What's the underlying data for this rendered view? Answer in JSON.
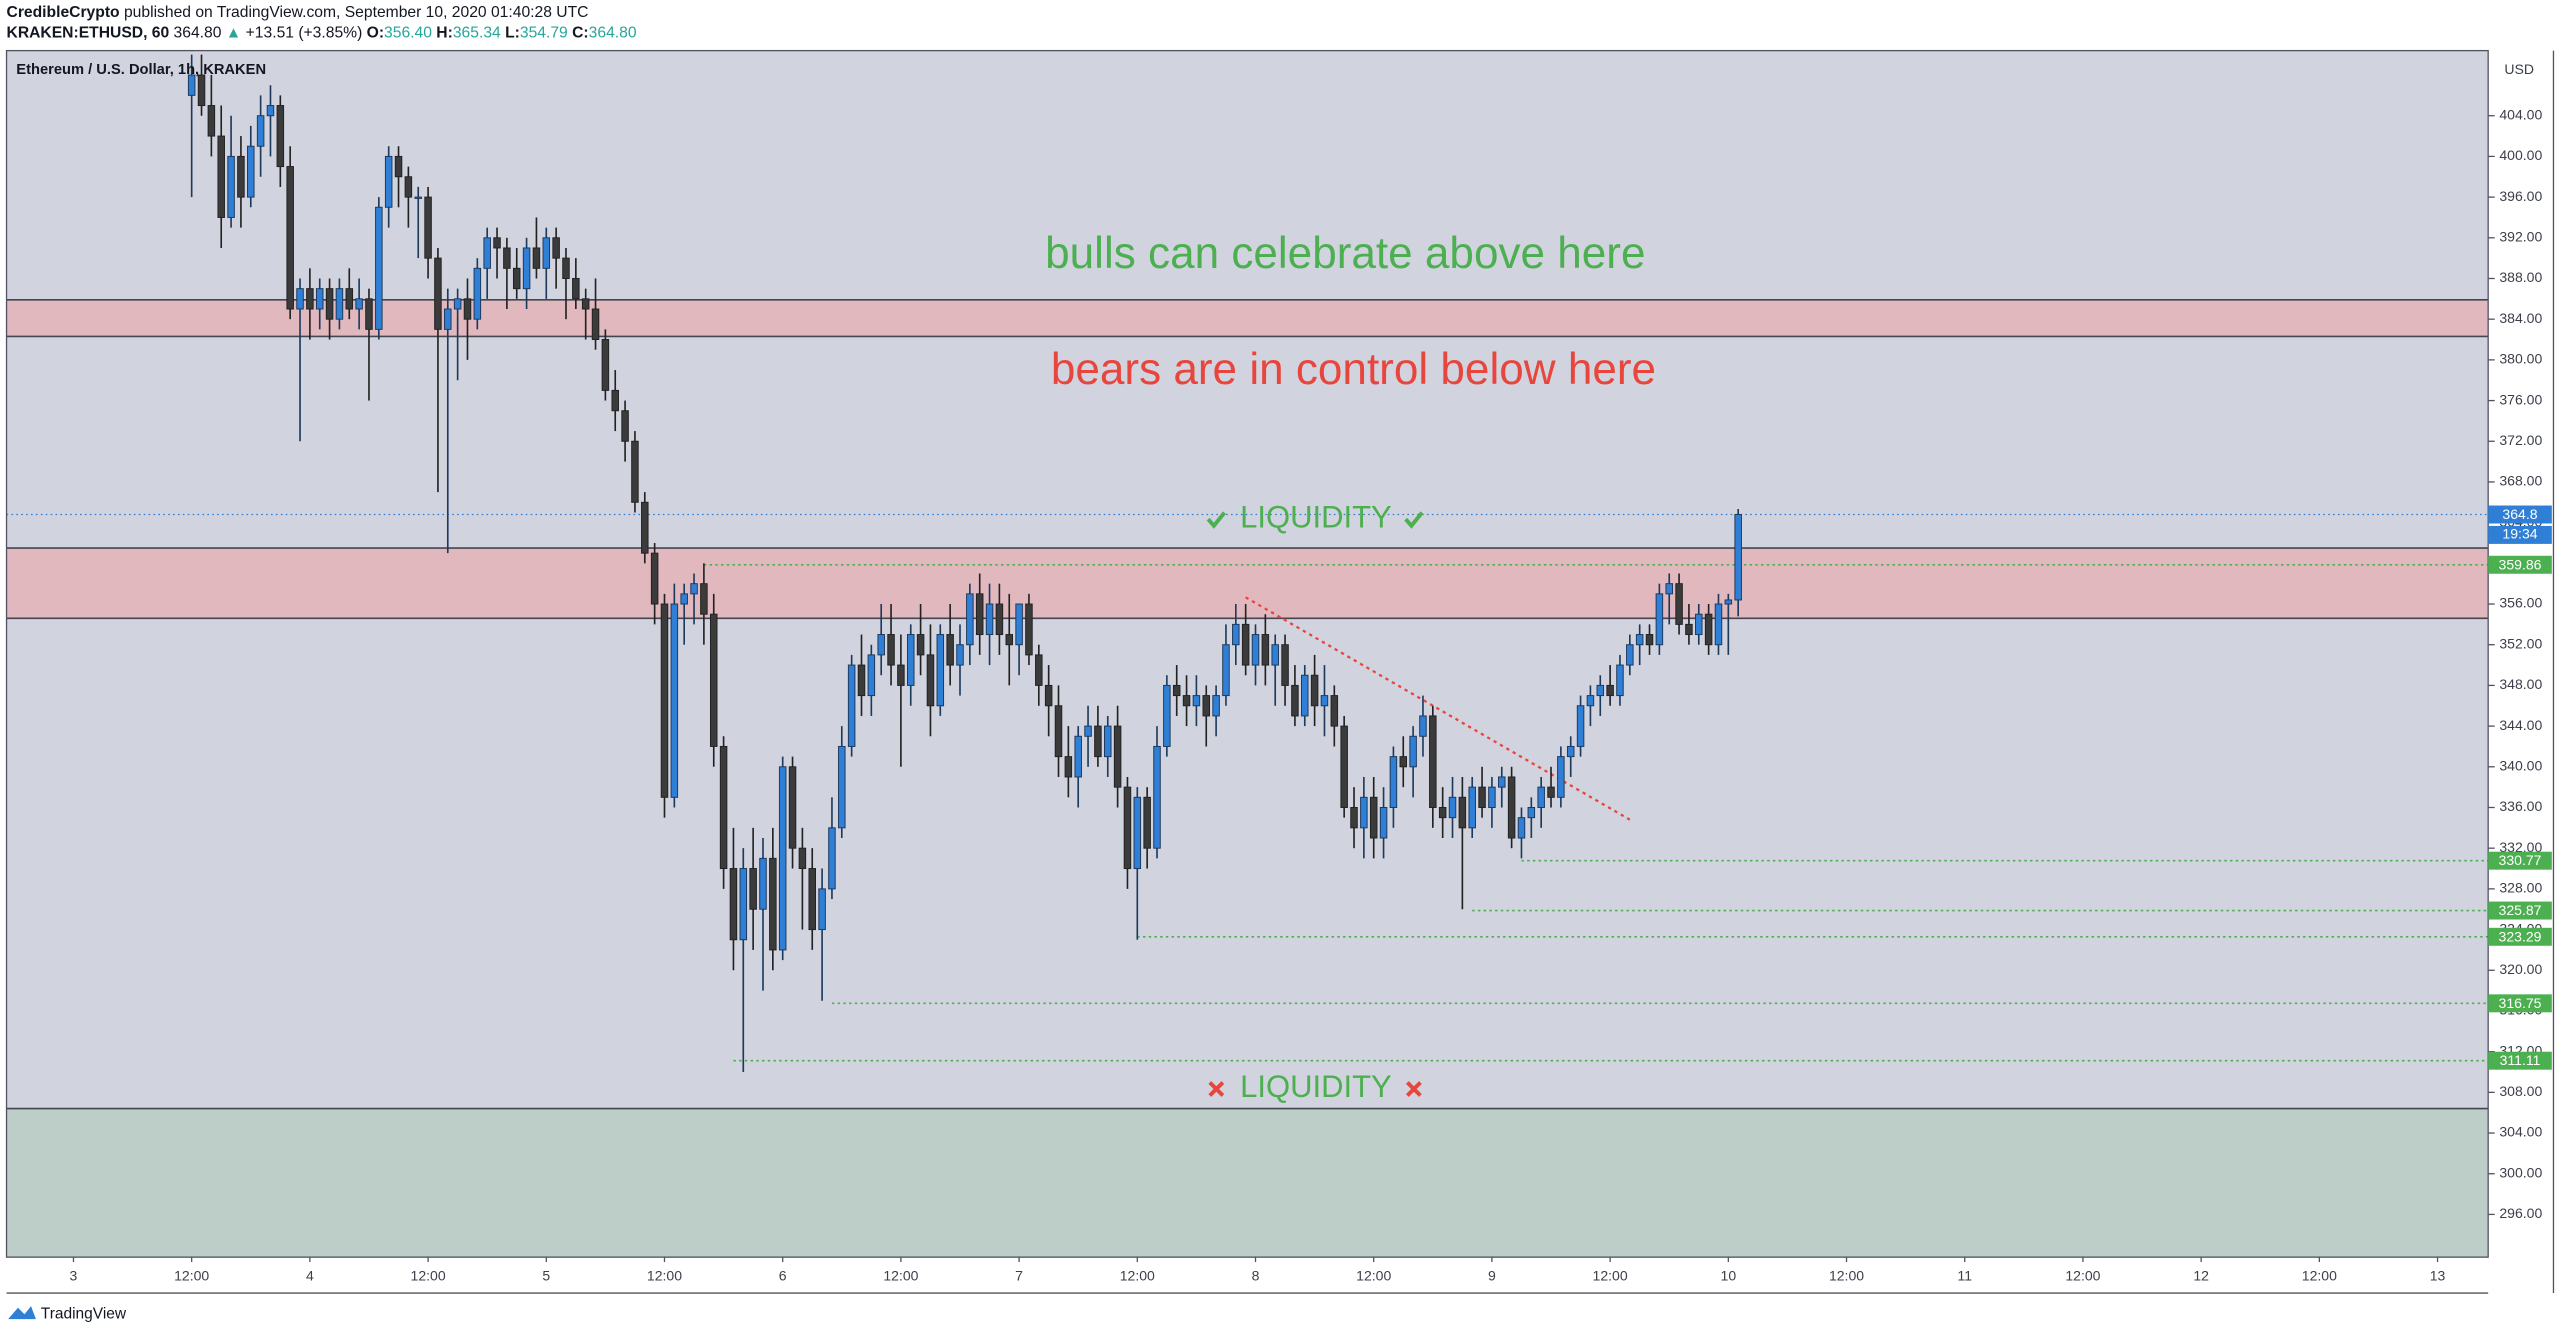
{
  "header": {
    "publisher": "CredibleCrypto",
    "published": "published on TradingView.com, September 10, 2020 01:40:28 UTC",
    "symbol": "KRAKEN:ETHUSD, 60",
    "last": "364.80",
    "change": "+13.51 (+3.85%)",
    "o_label": "O:",
    "o": "356.40",
    "h_label": "H:",
    "h": "365.34",
    "l_label": "L:",
    "l": "354.79",
    "c_label": "C:",
    "c": "364.80"
  },
  "footer": "TradingView",
  "chart_data": {
    "type": "candlestick",
    "title": "Ethereum / U.S. Dollar, 1h, KRAKEN",
    "currency": "USD",
    "categories": [
      "3",
      "12:00",
      "4",
      "12:00",
      "5",
      "12:00",
      "6",
      "12:00",
      "7",
      "12:00",
      "8",
      "12:00",
      "9",
      "12:00",
      "10",
      "12:00",
      "11",
      "12:00",
      "12",
      "12:00",
      "13"
    ],
    "up_color": "#2f7fd6",
    "down_color": "#3b3b3b",
    "background": "#d1d3de",
    "grid": false,
    "ylim": [
      291.8,
      410.4
    ],
    "yticks": [
      {
        "value": 296,
        "label": "296.00"
      },
      {
        "value": 300,
        "label": "300.00"
      },
      {
        "value": 304,
        "label": "304.00"
      },
      {
        "value": 308,
        "label": "308.00"
      },
      {
        "value": 312,
        "label": "312.00"
      },
      {
        "value": 316,
        "label": "316.00"
      },
      {
        "value": 320,
        "label": "320.00"
      },
      {
        "value": 324,
        "label": "324.00"
      },
      {
        "value": 328,
        "label": "328.00"
      },
      {
        "value": 332,
        "label": "332.00"
      },
      {
        "value": 336,
        "label": "336.00"
      },
      {
        "value": 340,
        "label": "340.00"
      },
      {
        "value": 344,
        "label": "344.00"
      },
      {
        "value": 348,
        "label": "348.00"
      },
      {
        "value": 352,
        "label": "352.00"
      },
      {
        "value": 356,
        "label": "356.00"
      },
      {
        "value": 360,
        "label": "360.00"
      },
      {
        "value": 364,
        "label": "364.00"
      },
      {
        "value": 368,
        "label": "368.00"
      },
      {
        "value": 372,
        "label": "372.00"
      },
      {
        "value": 376,
        "label": "376.00"
      },
      {
        "value": 380,
        "label": "380.00"
      },
      {
        "value": 384,
        "label": "384.00"
      },
      {
        "value": 388,
        "label": "388.00"
      },
      {
        "value": 392,
        "label": "392.00"
      },
      {
        "value": 396,
        "label": "396.00"
      },
      {
        "value": 400,
        "label": "400.00"
      },
      {
        "value": 404,
        "label": "404.00"
      }
    ],
    "candles": [
      [
        406,
        410,
        396,
        408
      ],
      [
        408,
        410,
        404,
        405
      ],
      [
        405,
        408,
        400,
        402
      ],
      [
        402,
        405,
        391,
        394
      ],
      [
        394,
        404,
        393,
        400
      ],
      [
        400,
        402,
        393,
        396
      ],
      [
        396,
        403,
        395,
        401
      ],
      [
        401,
        406,
        398,
        404
      ],
      [
        404,
        407,
        400,
        405
      ],
      [
        405,
        406,
        397,
        399
      ],
      [
        399,
        401,
        384,
        385
      ],
      [
        385,
        388,
        372,
        387
      ],
      [
        387,
        389,
        382,
        385
      ],
      [
        385,
        388,
        383,
        387
      ],
      [
        387,
        388,
        382,
        384
      ],
      [
        384,
        388,
        383,
        387
      ],
      [
        387,
        389,
        384,
        385
      ],
      [
        385,
        388,
        383,
        386
      ],
      [
        386,
        387,
        376,
        383
      ],
      [
        383,
        396,
        382,
        395
      ],
      [
        395,
        401,
        393,
        400
      ],
      [
        400,
        401,
        395,
        398
      ],
      [
        398,
        399,
        393,
        396
      ],
      [
        396,
        397,
        390,
        396
      ],
      [
        396,
        397,
        388,
        390
      ],
      [
        390,
        391,
        367,
        383
      ],
      [
        383,
        387,
        361,
        385
      ],
      [
        385,
        387,
        378,
        386
      ],
      [
        386,
        388,
        380,
        384
      ],
      [
        384,
        390,
        383,
        389
      ],
      [
        389,
        393,
        386,
        392
      ],
      [
        392,
        393,
        388,
        391
      ],
      [
        391,
        392,
        385,
        389
      ],
      [
        389,
        391,
        386,
        387
      ],
      [
        387,
        392,
        385,
        391
      ],
      [
        391,
        394,
        388,
        389
      ],
      [
        389,
        393,
        386,
        392
      ],
      [
        392,
        393,
        387,
        390
      ],
      [
        390,
        391,
        384,
        388
      ],
      [
        388,
        390,
        385,
        386
      ],
      [
        386,
        387,
        382,
        385
      ],
      [
        385,
        388,
        381,
        382
      ],
      [
        382,
        383,
        376,
        377
      ],
      [
        377,
        379,
        373,
        375
      ],
      [
        375,
        376,
        370,
        372
      ],
      [
        372,
        373,
        365,
        366
      ],
      [
        366,
        367,
        360,
        361
      ],
      [
        361,
        362,
        354,
        356
      ],
      [
        356,
        357,
        335,
        337
      ],
      [
        337,
        358,
        336,
        356
      ],
      [
        356,
        358,
        352,
        357
      ],
      [
        357,
        359,
        354,
        358
      ],
      [
        358,
        360,
        352,
        355
      ],
      [
        355,
        357,
        340,
        342
      ],
      [
        342,
        343,
        328,
        330
      ],
      [
        330,
        334,
        320,
        323
      ],
      [
        323,
        332,
        310,
        330
      ],
      [
        330,
        334,
        322,
        326
      ],
      [
        326,
        333,
        318,
        331
      ],
      [
        331,
        334,
        320,
        322
      ],
      [
        322,
        341,
        321,
        340
      ],
      [
        340,
        341,
        330,
        332
      ],
      [
        332,
        334,
        324,
        330
      ],
      [
        330,
        332,
        322,
        324
      ],
      [
        324,
        330,
        317,
        328
      ],
      [
        328,
        337,
        327,
        334
      ],
      [
        334,
        344,
        333,
        342
      ],
      [
        342,
        351,
        341,
        350
      ],
      [
        350,
        353,
        345,
        347
      ],
      [
        347,
        352,
        345,
        351
      ],
      [
        351,
        356,
        349,
        353
      ],
      [
        353,
        356,
        348,
        350
      ],
      [
        350,
        353,
        340,
        348
      ],
      [
        348,
        354,
        346,
        353
      ],
      [
        353,
        356,
        349,
        351
      ],
      [
        351,
        354,
        343,
        346
      ],
      [
        346,
        354,
        345,
        353
      ],
      [
        353,
        356,
        348,
        350
      ],
      [
        350,
        354,
        347,
        352
      ],
      [
        352,
        358,
        350,
        357
      ],
      [
        357,
        359,
        351,
        353
      ],
      [
        353,
        358,
        350,
        356
      ],
      [
        356,
        358,
        351,
        353
      ],
      [
        353,
        357,
        348,
        352
      ],
      [
        352,
        356,
        349,
        356
      ],
      [
        356,
        357,
        350,
        351
      ],
      [
        351,
        352,
        346,
        348
      ],
      [
        348,
        350,
        343,
        346
      ],
      [
        346,
        348,
        339,
        341
      ],
      [
        341,
        344,
        337,
        339
      ],
      [
        339,
        344,
        336,
        343
      ],
      [
        343,
        346,
        340,
        344
      ],
      [
        344,
        346,
        340,
        341
      ],
      [
        341,
        345,
        339,
        344
      ],
      [
        344,
        346,
        336,
        338
      ],
      [
        338,
        339,
        328,
        330
      ],
      [
        330,
        338,
        323,
        337
      ],
      [
        337,
        338,
        330,
        332
      ],
      [
        332,
        344,
        331,
        342
      ],
      [
        342,
        349,
        341,
        348
      ],
      [
        348,
        350,
        345,
        347
      ],
      [
        347,
        349,
        344,
        346
      ],
      [
        346,
        349,
        344,
        347
      ],
      [
        347,
        348,
        342,
        345
      ],
      [
        345,
        348,
        343,
        347
      ],
      [
        347,
        354,
        346,
        352
      ],
      [
        352,
        356,
        350,
        354
      ],
      [
        354,
        356,
        349,
        350
      ],
      [
        350,
        354,
        348,
        353
      ],
      [
        353,
        355,
        348,
        350
      ],
      [
        350,
        353,
        346,
        352
      ],
      [
        352,
        353,
        346,
        348
      ],
      [
        348,
        350,
        344,
        345
      ],
      [
        345,
        350,
        344,
        349
      ],
      [
        349,
        351,
        344,
        346
      ],
      [
        346,
        350,
        343,
        347
      ],
      [
        347,
        348,
        342,
        344
      ],
      [
        344,
        345,
        335,
        336
      ],
      [
        336,
        338,
        332,
        334
      ],
      [
        334,
        339,
        331,
        337
      ],
      [
        337,
        339,
        331,
        333
      ],
      [
        333,
        338,
        331,
        336
      ],
      [
        336,
        342,
        334,
        341
      ],
      [
        341,
        343,
        338,
        340
      ],
      [
        340,
        344,
        337,
        343
      ],
      [
        343,
        347,
        341,
        345
      ],
      [
        345,
        346,
        334,
        336
      ],
      [
        336,
        338,
        333,
        335
      ],
      [
        335,
        339,
        333,
        337
      ],
      [
        337,
        339,
        326,
        334
      ],
      [
        334,
        339,
        333,
        338
      ],
      [
        338,
        340,
        335,
        336
      ],
      [
        336,
        339,
        334,
        338
      ],
      [
        338,
        340,
        336,
        339
      ],
      [
        339,
        340,
        332,
        333
      ],
      [
        333,
        336,
        331,
        335
      ],
      [
        335,
        337,
        333,
        336
      ],
      [
        336,
        339,
        334,
        338
      ],
      [
        338,
        340,
        336,
        337
      ],
      [
        337,
        342,
        336,
        341
      ],
      [
        341,
        343,
        339,
        342
      ],
      [
        342,
        347,
        341,
        346
      ],
      [
        346,
        348,
        344,
        347
      ],
      [
        347,
        349,
        345,
        348
      ],
      [
        348,
        350,
        346,
        347
      ],
      [
        347,
        351,
        346,
        350
      ],
      [
        350,
        353,
        349,
        352
      ],
      [
        352,
        354,
        350,
        353
      ],
      [
        353,
        354,
        351,
        352
      ],
      [
        352,
        358,
        351,
        357
      ],
      [
        357,
        359,
        354,
        358
      ],
      [
        358,
        359,
        353,
        354
      ],
      [
        354,
        356,
        352,
        353
      ],
      [
        353,
        356,
        352,
        355
      ],
      [
        355,
        356,
        351,
        352
      ],
      [
        352,
        357,
        351,
        356
      ],
      [
        356,
        357,
        351,
        356.4
      ],
      [
        356.4,
        365.34,
        354.79,
        364.8
      ]
    ],
    "zones": [
      {
        "from": 382.3,
        "to": 385.9,
        "color": "#e3b3b8"
      },
      {
        "from": 354.6,
        "to": 361.5,
        "color": "#e3b3b8"
      },
      {
        "from": 291.8,
        "to": 306.4,
        "color": "#b8ccc3"
      }
    ],
    "levels": [
      {
        "value": 359.86,
        "color": "#4caf50"
      },
      {
        "value": 330.77,
        "color": "#4caf50"
      },
      {
        "value": 325.87,
        "color": "#4caf50"
      },
      {
        "value": 323.29,
        "color": "#4caf50"
      },
      {
        "value": 316.75,
        "color": "#4caf50"
      },
      {
        "value": 311.11,
        "color": "#4caf50"
      }
    ],
    "price_line": {
      "value": 364.8,
      "color": "#2f7fd6",
      "countdown": "19:34"
    },
    "trendline": {
      "values": [
        356.66,
        334.8
      ],
      "color": "#e8453c"
    },
    "annotations": [
      {
        "text": "bulls can celebrate above here",
        "color": "#4caf50"
      },
      {
        "text": "bears are in control below here",
        "color": "#e8453c"
      },
      {
        "text": "LIQUIDITY",
        "color": "#4caf50"
      },
      {
        "text": "LIQUIDITY",
        "color": "#4caf50"
      }
    ]
  }
}
